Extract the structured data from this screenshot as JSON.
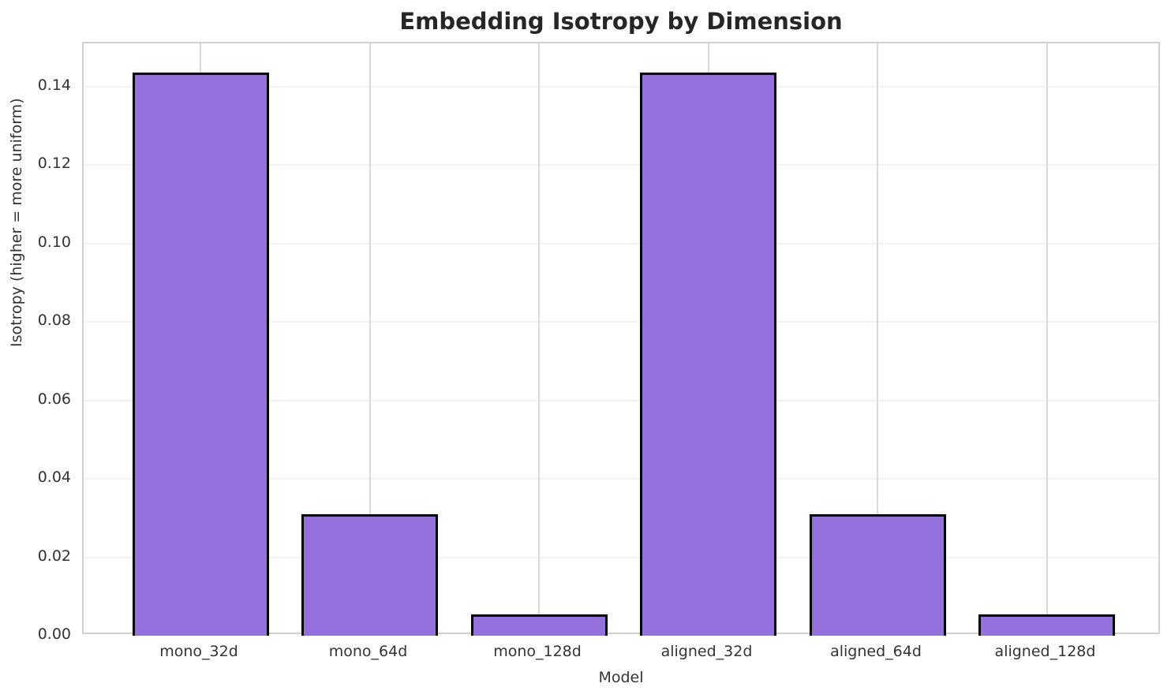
{
  "chart_data": {
    "type": "bar",
    "title": "Embedding Isotropy by Dimension",
    "xlabel": "Model",
    "ylabel": "Isotropy (higher = more uniform)",
    "categories": [
      "mono_32d",
      "mono_64d",
      "mono_128d",
      "aligned_32d",
      "aligned_64d",
      "aligned_128d"
    ],
    "values": [
      0.1436,
      0.031,
      0.0055,
      0.1436,
      0.031,
      0.0055
    ],
    "ylim": [
      0,
      0.151
    ],
    "yticks": [
      0.0,
      0.02,
      0.04,
      0.06,
      0.08,
      0.1,
      0.12,
      0.14
    ],
    "ytick_labels": [
      "0.00",
      "0.02",
      "0.04",
      "0.06",
      "0.08",
      "0.10",
      "0.12",
      "0.14"
    ],
    "grid": true,
    "legend": "none",
    "bar_color": "#9370DB",
    "bar_edge_color": "#000000",
    "grid_color_horizontal": "#f2f2f2",
    "grid_color_vertical": "#d9d9d9",
    "spine_color": "#d0d0d0"
  }
}
